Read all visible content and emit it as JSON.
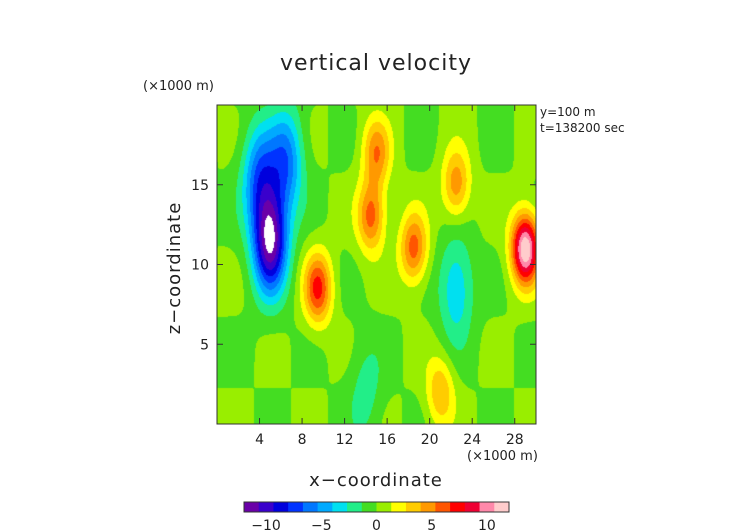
{
  "chart_data": {
    "type": "heatmap",
    "title": "vertical velocity",
    "xlabel": "x−coordinate",
    "ylabel": "z−coordinate",
    "x_unit": "(×1000 m)",
    "y_unit": "(×1000 m)",
    "annotation_lines": [
      "y=100 m",
      "t=138200 sec"
    ],
    "xlim": [
      0,
      30
    ],
    "ylim": [
      0,
      20
    ],
    "x_ticks": [
      4,
      8,
      12,
      16,
      20,
      24,
      28
    ],
    "x_tick_labels": [
      "4",
      "8",
      "12",
      "16",
      "20",
      "24",
      "28"
    ],
    "y_ticks": [
      5,
      10,
      15
    ],
    "y_tick_labels": [
      "5",
      "10",
      "15"
    ],
    "colorbar": {
      "range": [
        -12,
        12
      ],
      "ticks": [
        -10,
        -5,
        0,
        5,
        10
      ],
      "tick_labels": [
        "−10",
        "−5",
        "0",
        "5",
        "10"
      ],
      "colors": [
        "#6a00a8",
        "#3a00cc",
        "#0000dd",
        "#0033ff",
        "#0077ff",
        "#00aaff",
        "#00e0f0",
        "#22ee88",
        "#44dd22",
        "#99ee00",
        "#ffff00",
        "#ffcc00",
        "#ff9900",
        "#ff5500",
        "#ff0000",
        "#ee0033",
        "#ff88aa",
        "#ffcccc"
      ]
    },
    "field_features": [
      {
        "kind": "downdraft",
        "x": 5,
        "z": 11.5,
        "peak": -12
      },
      {
        "kind": "downdraft",
        "x": 4,
        "z": 15.5,
        "peak": -6
      },
      {
        "kind": "downdraft",
        "x": 6.5,
        "z": 16.5,
        "peak": -6
      },
      {
        "kind": "updraft",
        "x": 29,
        "z": 11,
        "peak": 12
      },
      {
        "kind": "updraft",
        "x": 9.5,
        "z": 8.5,
        "peak": 7
      },
      {
        "kind": "updraft",
        "x": 14.5,
        "z": 13,
        "peak": 6
      },
      {
        "kind": "updraft",
        "x": 18.5,
        "z": 11,
        "peak": 6
      },
      {
        "kind": "updraft",
        "x": 15,
        "z": 17,
        "peak": 5
      },
      {
        "kind": "updraft",
        "x": 22.5,
        "z": 15,
        "peak": 5
      },
      {
        "kind": "updraft",
        "x": 21,
        "z": 2,
        "peak": 4
      },
      {
        "kind": "downdraft",
        "x": 22.5,
        "z": 8.5,
        "peak": -4
      },
      {
        "kind": "downdraft",
        "x": 14,
        "z": 2,
        "peak": -2
      }
    ]
  }
}
